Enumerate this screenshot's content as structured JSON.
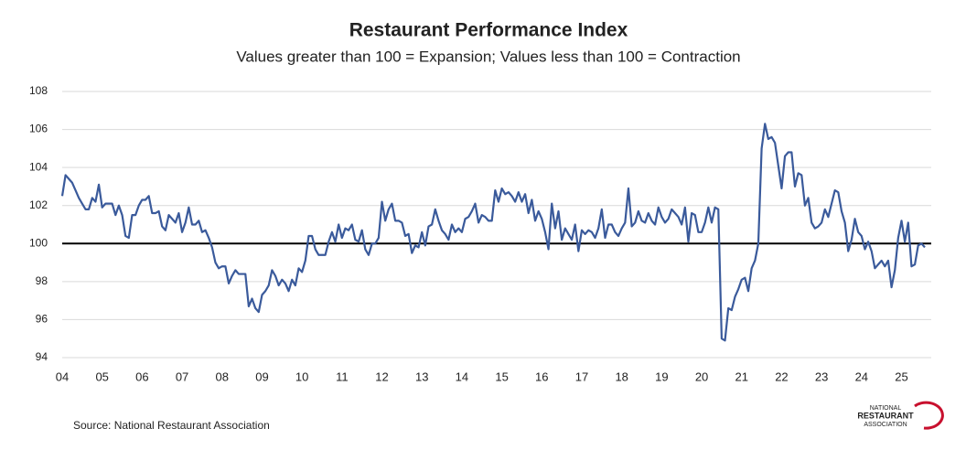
{
  "chart_data": {
    "type": "line",
    "title": "Restaurant Performance Index",
    "subtitle": "Values greater than 100 = Expansion; Values less than 100 = Contraction",
    "source": "Source: National Restaurant Association",
    "logo": [
      "NATIONAL",
      "RESTAURANT",
      "ASSOCIATION"
    ],
    "categories": [
      "04",
      null,
      null,
      null,
      null,
      null,
      null,
      null,
      null,
      null,
      null,
      null,
      "05",
      null,
      null,
      null,
      null,
      null,
      null,
      null,
      null,
      null,
      null,
      null,
      "06",
      null,
      null,
      null,
      null,
      null,
      null,
      null,
      null,
      null,
      null,
      null,
      "07",
      null,
      null,
      null,
      null,
      null,
      null,
      null,
      null,
      null,
      null,
      null,
      "08",
      null,
      null,
      null,
      null,
      null,
      null,
      null,
      null,
      null,
      null,
      null,
      "09",
      null,
      null,
      null,
      null,
      null,
      null,
      null,
      null,
      null,
      null,
      null,
      "10",
      null,
      null,
      null,
      null,
      null,
      null,
      null,
      null,
      null,
      null,
      null,
      "11",
      null,
      null,
      null,
      null,
      null,
      null,
      null,
      null,
      null,
      null,
      null,
      "12",
      null,
      null,
      null,
      null,
      null,
      null,
      null,
      null,
      null,
      null,
      null,
      "13",
      null,
      null,
      null,
      null,
      null,
      null,
      null,
      null,
      null,
      null,
      null,
      "14",
      null,
      null,
      null,
      null,
      null,
      null,
      null,
      null,
      null,
      null,
      null,
      "15",
      null,
      null,
      null,
      null,
      null,
      null,
      null,
      null,
      null,
      null,
      null,
      "16",
      null,
      null,
      null,
      null,
      null,
      null,
      null,
      null,
      null,
      null,
      null,
      "17",
      null,
      null,
      null,
      null,
      null,
      null,
      null,
      null,
      null,
      null,
      null,
      "18",
      null,
      null,
      null,
      null,
      null,
      null,
      null,
      null,
      null,
      null,
      null,
      "19",
      null,
      null,
      null,
      null,
      null,
      null,
      null,
      null,
      null,
      null,
      null,
      "20",
      null,
      null,
      null,
      null,
      null,
      null,
      null,
      null,
      null,
      null,
      null,
      "21",
      null,
      null,
      null,
      null,
      null,
      null,
      null,
      null,
      null,
      null,
      null,
      "22",
      null,
      null,
      null,
      null,
      null,
      null,
      null,
      null,
      null,
      null,
      null,
      "23",
      null,
      null,
      null,
      null,
      null,
      null,
      null,
      null,
      null,
      null,
      null,
      "24",
      null,
      null,
      null,
      null,
      null,
      null,
      null,
      null,
      null,
      null,
      null,
      "25",
      null,
      null,
      null,
      null,
      null,
      null,
      null
    ],
    "series": [
      {
        "color": "#3a5a9b",
        "values": [
          102.5,
          103.6,
          103.4,
          103.2,
          102.8,
          102.4,
          102.1,
          101.8,
          101.8,
          102.4,
          102.2,
          103.1,
          101.9,
          102.1,
          102.1,
          102.1,
          101.5,
          102.0,
          101.5,
          100.4,
          100.3,
          101.5,
          101.5,
          102.0,
          102.3,
          102.3,
          102.5,
          101.6,
          101.6,
          101.7,
          100.9,
          100.7,
          101.5,
          101.3,
          101.1,
          101.6,
          100.6,
          101.1,
          101.9,
          101.0,
          101.0,
          101.2,
          100.6,
          100.7,
          100.3,
          99.8,
          99.0,
          98.7,
          98.8,
          98.8,
          97.9,
          98.3,
          98.6,
          98.4,
          98.4,
          98.4,
          96.7,
          97.1,
          96.6,
          96.4,
          97.3,
          97.5,
          97.8,
          98.6,
          98.3,
          97.8,
          98.1,
          97.9,
          97.5,
          98.1,
          97.8,
          98.7,
          98.5,
          99.1,
          100.4,
          100.4,
          99.7,
          99.4,
          99.4,
          99.4,
          100.1,
          100.6,
          100.1,
          101.0,
          100.3,
          100.8,
          100.7,
          101.0,
          100.2,
          100.1,
          100.7,
          99.7,
          99.4,
          100.0,
          100.0,
          100.3,
          102.2,
          101.2,
          101.8,
          102.1,
          101.2,
          101.2,
          101.1,
          100.4,
          100.5,
          99.5,
          99.9,
          99.8,
          100.6,
          99.9,
          100.9,
          101.0,
          101.8,
          101.2,
          100.7,
          100.5,
          100.2,
          101.0,
          100.6,
          100.8,
          100.6,
          101.3,
          101.4,
          101.7,
          102.1,
          101.1,
          101.5,
          101.4,
          101.2,
          101.2,
          102.8,
          102.2,
          102.9,
          102.6,
          102.7,
          102.5,
          102.2,
          102.7,
          102.2,
          102.6,
          101.6,
          102.3,
          101.2,
          101.7,
          101.3,
          100.6,
          99.7,
          102.1,
          100.8,
          101.7,
          100.2,
          100.8,
          100.5,
          100.2,
          101.0,
          99.6,
          100.7,
          100.5,
          100.7,
          100.6,
          100.3,
          100.8,
          101.8,
          100.3,
          101.0,
          101.0,
          100.6,
          100.4,
          100.8,
          101.1,
          102.9,
          100.9,
          101.1,
          101.7,
          101.2,
          101.1,
          101.6,
          101.2,
          101.0,
          101.9,
          101.4,
          101.1,
          101.3,
          101.8,
          101.6,
          101.4,
          101.0,
          101.9,
          100.1,
          101.6,
          101.5,
          100.6,
          100.6,
          101.1,
          101.9,
          101.1,
          101.9,
          101.8,
          95.0,
          94.9,
          96.6,
          96.5,
          97.2,
          97.6,
          98.1,
          98.2,
          97.5,
          98.7,
          99.1,
          100.0,
          105.0,
          106.3,
          105.5,
          105.6,
          105.3,
          104.1,
          102.9,
          104.6,
          104.8,
          104.8,
          103.0,
          103.7,
          103.6,
          102.0,
          102.4,
          101.1,
          100.8,
          100.9,
          101.1,
          101.8,
          101.4,
          102.1,
          102.8,
          102.7,
          101.7,
          101.1,
          99.6,
          100.2,
          101.3,
          100.6,
          100.4,
          99.7,
          100.1,
          99.6,
          98.7,
          98.9,
          99.1,
          98.8,
          99.1,
          97.7,
          98.6,
          100.3,
          101.2,
          100.1,
          101.1,
          98.8,
          98.9,
          99.9,
          100.0,
          99.8
        ]
      }
    ],
    "ylim": [
      94,
      108
    ],
    "yticks": [
      94,
      96,
      98,
      100,
      102,
      104,
      106,
      108
    ],
    "reference_line": 100,
    "grid": true
  }
}
